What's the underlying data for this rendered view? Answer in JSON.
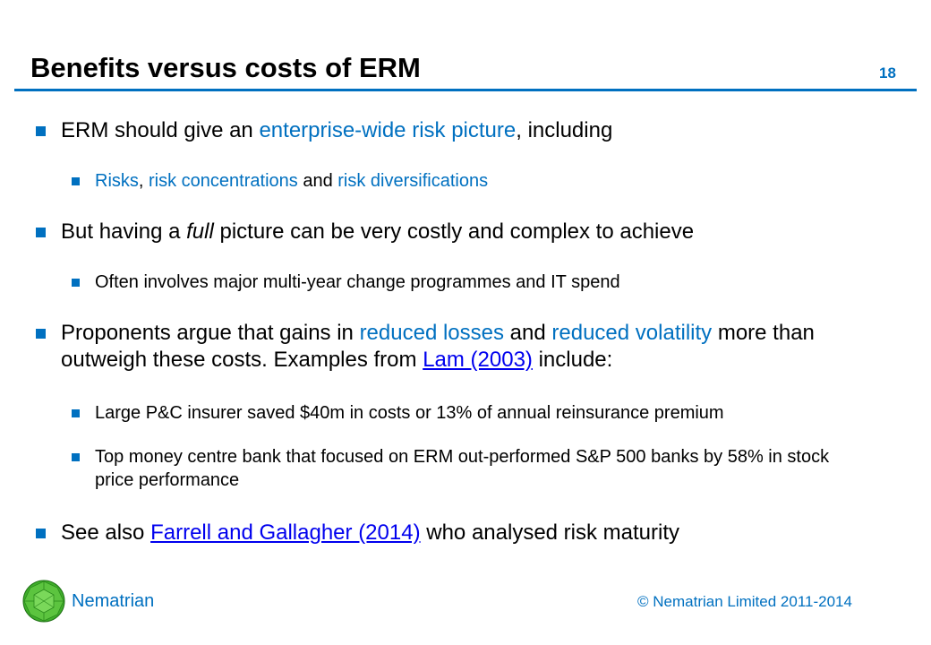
{
  "header": {
    "title": "Benefits versus costs of ERM",
    "slide_number": "18"
  },
  "bullets": {
    "b1": {
      "pre": "ERM should give an ",
      "hl": "enterprise-wide risk picture",
      "post": ", including"
    },
    "b1a": {
      "t1": "Risks",
      "t2": ", ",
      "t3": "risk concentrations",
      "t4": " and ",
      "t5": "risk diversifications"
    },
    "b2": {
      "pre": "But having a ",
      "em": "full",
      "post": " picture can be very costly and complex to achieve"
    },
    "b2a": "Often involves major multi-year change programmes and IT spend",
    "b3": {
      "pre": "Proponents argue that gains in ",
      "hl1": "reduced losses",
      "mid": " and ",
      "hl2": "reduced volatility",
      "post": " more than outweigh these costs. Examples from ",
      "link": "Lam (2003)",
      "end": " include:"
    },
    "b3a": "Large P&C insurer saved $40m in costs or 13% of annual reinsurance premium",
    "b3b": "Top money centre bank that focused on ERM out-performed S&P 500 banks by 58% in stock price performance",
    "b4": {
      "pre": "See also ",
      "link": "Farrell and Gallagher (2014)",
      "post": " who analysed risk maturity"
    }
  },
  "footer": {
    "brand": "Nematrian",
    "copyright": "© Nematrian Limited 2011-2014"
  },
  "colors": {
    "accent": "#0070c0",
    "link": "#0000ee",
    "logo_green": "#3fae2a"
  },
  "icons": {
    "logo": "green-geodesic-sphere-icon"
  }
}
